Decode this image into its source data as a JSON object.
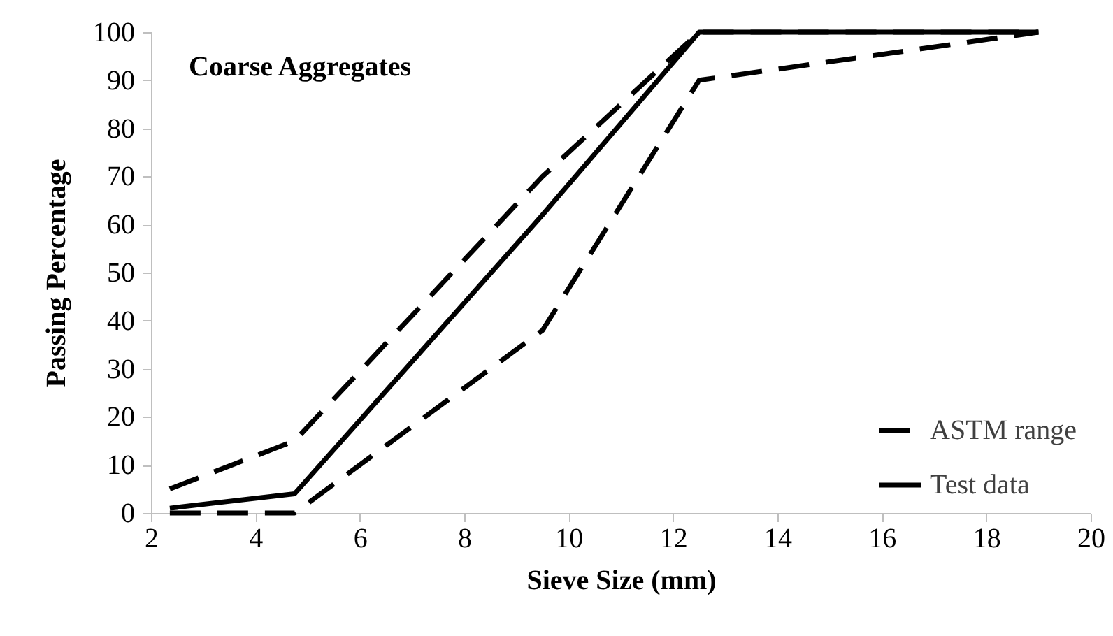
{
  "chart_data": {
    "type": "line",
    "title": "Coarse Aggregates",
    "xlabel": "Sieve Size (mm)",
    "ylabel": "Passing Percentage",
    "x": [
      2.36,
      4.75,
      9.5,
      12.5,
      19
    ],
    "series": [
      {
        "name": "ASTM range",
        "color": "#000000",
        "line_style": "dashed",
        "values": [
          5,
          15,
          70,
          100,
          100
        ]
      },
      {
        "color": "#000000",
        "line_style": "dashed",
        "values": [
          0,
          0,
          38,
          90,
          100
        ]
      },
      {
        "name": "Test data",
        "color": "#000000",
        "line_style": "solid",
        "values": [
          1,
          4,
          62,
          100,
          100
        ]
      }
    ],
    "xlim": [
      2,
      20
    ],
    "xticks": [
      2,
      4,
      6,
      8,
      10,
      12,
      14,
      16,
      18,
      20
    ],
    "ylim": [
      0,
      100
    ],
    "yticks": [
      0,
      10,
      20,
      30,
      40,
      50,
      60,
      70,
      80,
      90,
      100
    ],
    "grid": false,
    "legend": "bottom right",
    "marker": "none"
  }
}
